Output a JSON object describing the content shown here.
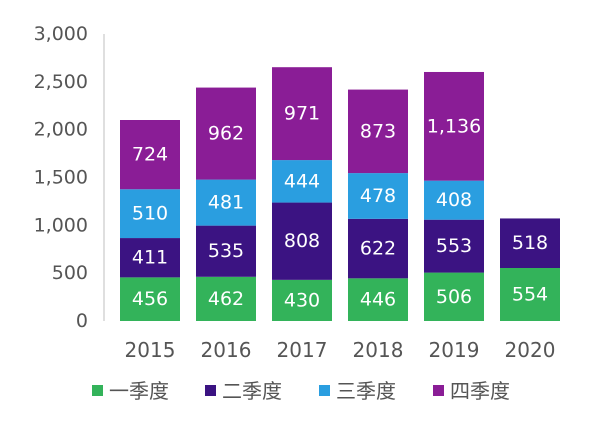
{
  "chart_data": {
    "type": "bar",
    "stacked": true,
    "categories": [
      "2015",
      "2016",
      "2017",
      "2018",
      "2019",
      "2020"
    ],
    "series": [
      {
        "name": "一季度",
        "color": "#33b35a",
        "values": [
          456,
          462,
          430,
          446,
          506,
          554
        ],
        "labels": [
          "456",
          "462",
          "430",
          "446",
          "506",
          "554"
        ]
      },
      {
        "name": "二季度",
        "color": "#3b1382",
        "values": [
          411,
          535,
          808,
          622,
          553,
          518
        ],
        "labels": [
          "411",
          "535",
          "808",
          "622",
          "553",
          "518"
        ]
      },
      {
        "name": "三季度",
        "color": "#2a9ee0",
        "values": [
          510,
          481,
          444,
          478,
          408,
          null
        ],
        "labels": [
          "510",
          "481",
          "444",
          "478",
          "408",
          ""
        ]
      },
      {
        "name": "四季度",
        "color": "#8a1d96",
        "values": [
          724,
          962,
          971,
          873,
          1136,
          null
        ],
        "labels": [
          "724",
          "962",
          "971",
          "873",
          "1,136",
          ""
        ]
      }
    ],
    "ylim": [
      0,
      3000
    ],
    "yticks": [
      0,
      500,
      1000,
      1500,
      2000,
      2500,
      3000
    ],
    "ytick_labels": [
      "0",
      "500",
      "1,000",
      "1,500",
      "2,000",
      "2,500",
      "3,000"
    ],
    "legend_position": "bottom",
    "grid": false
  }
}
